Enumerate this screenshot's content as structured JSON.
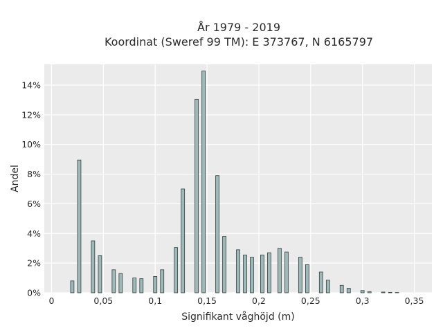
{
  "chart_data": {
    "type": "bar",
    "title_line1": "År 1979 - 2019",
    "title_line2": "Koordinat (Sweref 99 TM): E 373767, N 6165797",
    "xlabel": "Signifikant våghöjd (m)",
    "ylabel": "Andel",
    "xlim": [
      -0.007,
      0.367
    ],
    "ylim": [
      0,
      15.4
    ],
    "x_ticks": [
      {
        "value": 0,
        "label": "0"
      },
      {
        "value": 0.05,
        "label": "0,05"
      },
      {
        "value": 0.1,
        "label": "0,1"
      },
      {
        "value": 0.15,
        "label": "0,15"
      },
      {
        "value": 0.2,
        "label": "0,2"
      },
      {
        "value": 0.25,
        "label": "0,25"
      },
      {
        "value": 0.3,
        "label": "0,3"
      },
      {
        "value": 0.35,
        "label": "0,35"
      }
    ],
    "y_ticks": [
      {
        "value": 0,
        "label": "0%"
      },
      {
        "value": 2,
        "label": "2%"
      },
      {
        "value": 4,
        "label": "4%"
      },
      {
        "value": 6,
        "label": "6%"
      },
      {
        "value": 8,
        "label": "8%"
      },
      {
        "value": 10,
        "label": "10%"
      },
      {
        "value": 12,
        "label": "12%"
      },
      {
        "value": 14,
        "label": "14%"
      }
    ],
    "bar_width": 0.0033,
    "bars": [
      {
        "x": 0.02,
        "value": 0.8
      },
      {
        "x": 0.0267,
        "value": 8.95
      },
      {
        "x": 0.04,
        "value": 3.5
      },
      {
        "x": 0.0467,
        "value": 2.5
      },
      {
        "x": 0.06,
        "value": 1.55
      },
      {
        "x": 0.0667,
        "value": 1.3
      },
      {
        "x": 0.08,
        "value": 1.0
      },
      {
        "x": 0.0867,
        "value": 0.95
      },
      {
        "x": 0.1,
        "value": 1.1
      },
      {
        "x": 0.1067,
        "value": 1.55
      },
      {
        "x": 0.12,
        "value": 3.05
      },
      {
        "x": 0.1267,
        "value": 7.0
      },
      {
        "x": 0.14,
        "value": 13.05
      },
      {
        "x": 0.1467,
        "value": 14.95
      },
      {
        "x": 0.16,
        "value": 7.9
      },
      {
        "x": 0.1667,
        "value": 3.8
      },
      {
        "x": 0.18,
        "value": 2.9
      },
      {
        "x": 0.1867,
        "value": 2.55
      },
      {
        "x": 0.1933,
        "value": 2.4
      },
      {
        "x": 0.2033,
        "value": 2.55
      },
      {
        "x": 0.21,
        "value": 2.7
      },
      {
        "x": 0.22,
        "value": 3.0
      },
      {
        "x": 0.2267,
        "value": 2.75
      },
      {
        "x": 0.24,
        "value": 2.4
      },
      {
        "x": 0.2467,
        "value": 1.9
      },
      {
        "x": 0.26,
        "value": 1.4
      },
      {
        "x": 0.2667,
        "value": 0.85
      },
      {
        "x": 0.28,
        "value": 0.5
      },
      {
        "x": 0.2867,
        "value": 0.3
      },
      {
        "x": 0.3,
        "value": 0.15
      },
      {
        "x": 0.3067,
        "value": 0.08
      },
      {
        "x": 0.32,
        "value": 0.05
      },
      {
        "x": 0.3267,
        "value": 0.03
      },
      {
        "x": 0.3333,
        "value": 0.02
      }
    ],
    "colors": {
      "bar_fill": "#9fb8b8",
      "bar_stroke": "#2f3e3e",
      "plot_background": "#ebebeb",
      "grid": "#ffffff"
    },
    "grid": true
  }
}
